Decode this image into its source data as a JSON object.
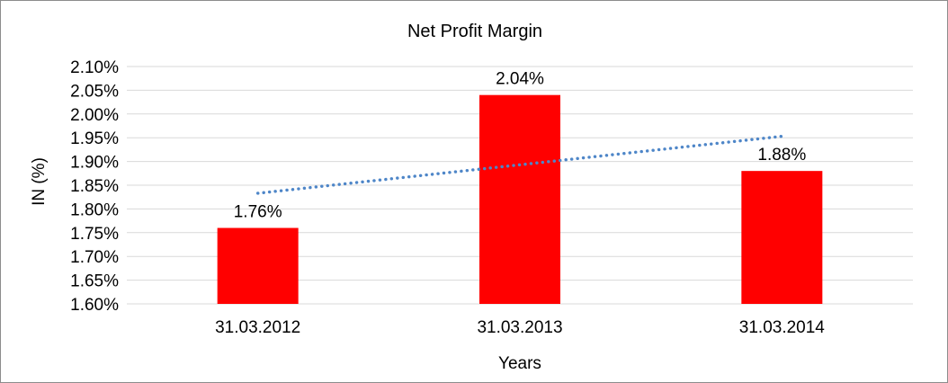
{
  "chart_data": {
    "type": "bar",
    "title": "Net Profit Margin",
    "xlabel": "Years",
    "ylabel": "IN (%)",
    "categories": [
      "31.03.2012",
      "31.03.2013",
      "31.03.2014"
    ],
    "series": [
      {
        "name": "Net Profit Margin",
        "values": [
          1.76,
          2.04,
          1.88
        ]
      }
    ],
    "data_labels": [
      "1.76%",
      "2.04%",
      "1.88%"
    ],
    "y_ticks": [
      "2.10%",
      "2.05%",
      "2.00%",
      "1.95%",
      "1.90%",
      "1.85%",
      "1.80%",
      "1.75%",
      "1.70%",
      "1.65%",
      "1.60%"
    ],
    "ylim": [
      1.6,
      2.1
    ],
    "y_step": 0.05,
    "grid": true,
    "legend": "none",
    "bar_color": "#FF0000",
    "gridline_color": "#D9D9D9",
    "text_color": "#000000",
    "trendline": {
      "style": "dotted",
      "color": "#4E86C8",
      "start_value": 1.833,
      "end_value": 1.953
    }
  }
}
